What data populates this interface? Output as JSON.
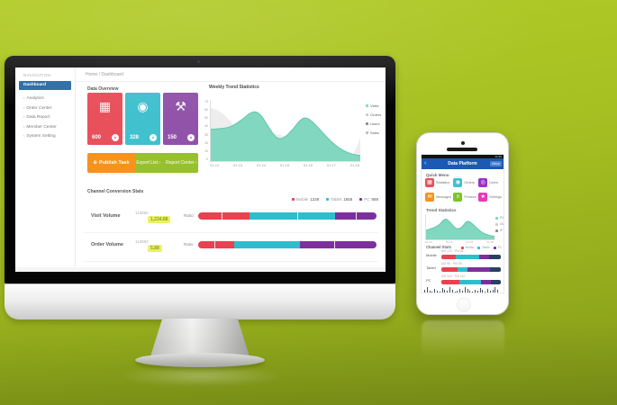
{
  "colors": {
    "bg_top": "#b2cc28",
    "bg_bottom": "#84991a",
    "accent_blue": "#2e6da4",
    "phone_header": "#1b59b4",
    "card_red": "#e8505b",
    "card_cyan": "#41c0ce",
    "card_purple": "#9153a9",
    "btn_orange": "#f6921e",
    "btn_green": "#96c02d",
    "teal_area": "#82d7c0",
    "teal_edge": "#5ec7ab",
    "gray_area": "#ededed",
    "bar_red": "#e8414f",
    "bar_cyan": "#2fbccc",
    "bar_purple": "#7d2f9e",
    "bar_navy": "#2b3f63",
    "badge_yellow": "#e9f264"
  },
  "desktop": {
    "sidebar": {
      "header": "NAVIGATION",
      "items": [
        {
          "label": "Dashboard",
          "active": true
        },
        {
          "label": "Analytics",
          "active": false
        },
        {
          "label": "Order Center",
          "active": false
        },
        {
          "label": "Data Report",
          "active": false
        },
        {
          "label": "Member Center",
          "active": false
        },
        {
          "label": "System Setting",
          "active": false
        }
      ]
    },
    "breadcrumb": "Home / Dashboard",
    "overview": {
      "title": "Data Overview",
      "cards": [
        {
          "value": "600",
          "icon": "calendar-icon",
          "color": "#e8505b"
        },
        {
          "value": "328",
          "icon": "disk-icon",
          "color": "#41c0ce"
        },
        {
          "value": "150",
          "icon": "hammer-icon",
          "color": "#9153a9"
        }
      ],
      "primary_action": "Publish Task",
      "secondary_actions": [
        "Export List ›",
        "Report Center ›"
      ]
    },
    "trend": {
      "title": "Weekly Trend Statistics"
    },
    "channels": {
      "title": "Channel Conversion Stats",
      "legend": [
        {
          "label": "Mobile",
          "value": "1238",
          "color": "#e8414f"
        },
        {
          "label": "Tablet",
          "value": "1858",
          "color": "#2fbccc"
        },
        {
          "label": "PC",
          "value": "888",
          "color": "#7d2f9e"
        }
      ],
      "rows": [
        {
          "name": "Visit Volume",
          "value": "113882",
          "badge": "1,234.88",
          "bar_label": "Ratio:"
        },
        {
          "name": "Order Volume",
          "value": "113883",
          "badge": "5.88",
          "bar_label": "Ratio:"
        }
      ]
    }
  },
  "phone": {
    "status_time": "12:30",
    "header": {
      "back": "‹",
      "title": "Data Platform",
      "action": "Menu"
    },
    "menu": {
      "title": "Quick Menu",
      "tiles": [
        {
          "label": "Statistics",
          "icon": "grid-icon",
          "color": "#e8505b"
        },
        {
          "label": "Orders",
          "icon": "disk-icon",
          "color": "#41c0ce"
        },
        {
          "label": "Users",
          "icon": "target-icon",
          "color": "#9b30c8"
        },
        {
          "label": "Messages",
          "icon": "mail-icon",
          "color": "#f6921e"
        },
        {
          "label": "Finance",
          "icon": "list-icon",
          "color": "#7dc32a"
        },
        {
          "label": "Settings",
          "icon": "star-icon",
          "color": "#e838b8"
        }
      ]
    },
    "trend": {
      "title": "Trend Statistics"
    },
    "channels": {
      "title": "Channel Stats",
      "legend": [
        {
          "label": "Mobile",
          "color": "#e8414f"
        },
        {
          "label": "Tablet",
          "color": "#2fbccc"
        },
        {
          "label": "PC",
          "color": "#7d2f9e"
        }
      ],
      "rows": [
        {
          "name": "Mobile",
          "meta": "AM 123 · PM 86"
        },
        {
          "name": "Tablet",
          "meta": "AM 96 · PM 58"
        },
        {
          "name": "PC",
          "meta": "AM 318 · PM 142"
        }
      ]
    }
  },
  "chart_data": [
    {
      "type": "area",
      "id": "desktop-trend",
      "title": "Weekly Trend Statistics",
      "x_labels": [
        "01-12",
        "01-13",
        "01-14",
        "01-15",
        "01-16",
        "01-17",
        "01-18"
      ],
      "y_ticks": [
        "70",
        "60",
        "50",
        "40",
        "30",
        "20",
        "10",
        "0"
      ],
      "legend": [
        {
          "label": "Visits",
          "color": "#82d7c0"
        },
        {
          "label": "Orders",
          "color": "#cccccc"
        },
        {
          "label": "Users",
          "color": "#888888"
        },
        {
          "label": "Sales",
          "color": "#bbbbbb"
        }
      ],
      "series": [
        {
          "name": "previous",
          "color": "#ededed",
          "points": [
            [
              0,
              0.87
            ],
            [
              0.06,
              0.83
            ],
            [
              0.13,
              0.66
            ],
            [
              0.2,
              0.46
            ],
            [
              0.27,
              0.36
            ],
            [
              0.34,
              0.38
            ],
            [
              0.42,
              0.46
            ],
            [
              0.5,
              0.4
            ],
            [
              0.58,
              0.42
            ],
            [
              0.66,
              0.46
            ],
            [
              0.74,
              0.38
            ],
            [
              0.82,
              0.24
            ],
            [
              0.9,
              0.1
            ],
            [
              0.95,
              0.08
            ],
            [
              1,
              0.38
            ]
          ]
        },
        {
          "name": "current",
          "color": "#82d7c0",
          "stroke": "#5ec7ab",
          "points": [
            [
              0,
              0.52
            ],
            [
              0.07,
              0.53
            ],
            [
              0.14,
              0.56
            ],
            [
              0.21,
              0.68
            ],
            [
              0.28,
              0.82
            ],
            [
              0.33,
              0.78
            ],
            [
              0.38,
              0.58
            ],
            [
              0.44,
              0.36
            ],
            [
              0.49,
              0.37
            ],
            [
              0.55,
              0.52
            ],
            [
              0.6,
              0.68
            ],
            [
              0.64,
              0.72
            ],
            [
              0.7,
              0.6
            ],
            [
              0.77,
              0.4
            ],
            [
              0.85,
              0.22
            ],
            [
              0.93,
              0.12
            ],
            [
              1,
              0.09
            ]
          ]
        }
      ]
    },
    {
      "type": "area",
      "id": "phone-trend",
      "x_labels": [
        "01-12",
        "01-14",
        "01-16",
        "01-18"
      ],
      "legend": [
        {
          "label": "PV",
          "color": "#82d7c0"
        },
        {
          "label": "UV",
          "color": "#cccccc"
        },
        {
          "label": "IP",
          "color": "#888888"
        }
      ],
      "series": [
        {
          "name": "current",
          "color": "#82d7c0",
          "stroke": "#5ec7ab",
          "points": [
            [
              0,
              0.36
            ],
            [
              0.1,
              0.44
            ],
            [
              0.2,
              0.58
            ],
            [
              0.28,
              0.86
            ],
            [
              0.36,
              0.66
            ],
            [
              0.44,
              0.4
            ],
            [
              0.52,
              0.46
            ],
            [
              0.6,
              0.76
            ],
            [
              0.68,
              0.62
            ],
            [
              0.78,
              0.34
            ],
            [
              0.88,
              0.18
            ],
            [
              1,
              0.12
            ]
          ]
        }
      ]
    },
    {
      "type": "stacked-bar",
      "id": "desktop-channels",
      "rows": [
        {
          "name": "Visit Volume",
          "segments": [
            {
              "color": "#e8414f",
              "pct": 29,
              "tick": 45
            },
            {
              "color": "#2fbccc",
              "pct": 48,
              "tick": 55
            },
            {
              "color": "#7d2f9e",
              "pct": 23,
              "tick": 50
            }
          ]
        },
        {
          "name": "Order Volume",
          "segments": [
            {
              "color": "#e8414f",
              "pct": 20,
              "tick": 45
            },
            {
              "color": "#2fbccc",
              "pct": 37
            },
            {
              "color": "#7d2f9e",
              "pct": 43,
              "tick": 45
            }
          ]
        }
      ]
    },
    {
      "type": "stacked-bar",
      "id": "phone-channels",
      "rows": [
        {
          "name": "Mobile",
          "segments": [
            {
              "color": "#e8414f",
              "pct": 24
            },
            {
              "color": "#2fbccc",
              "pct": 40
            },
            {
              "color": "#7d2f9e",
              "pct": 16
            },
            {
              "color": "#2b3f63",
              "pct": 20
            }
          ]
        },
        {
          "name": "Tablet",
          "segments": [
            {
              "color": "#e8414f",
              "pct": 28
            },
            {
              "color": "#2fbccc",
              "pct": 16
            },
            {
              "color": "#7d2f9e",
              "pct": 38
            },
            {
              "color": "#2b3f63",
              "pct": 18
            }
          ]
        },
        {
          "name": "PC",
          "segments": [
            {
              "color": "#e8414f",
              "pct": 30
            },
            {
              "color": "#2fbccc",
              "pct": 36
            },
            {
              "color": "#7d2f9e",
              "pct": 18
            },
            {
              "color": "#2b3f63",
              "pct": 16
            }
          ]
        }
      ]
    },
    {
      "type": "bar",
      "id": "phone-histogram",
      "values": [
        0.5,
        0.85,
        0.3,
        0.2,
        0.55,
        0.3,
        0.15,
        0.7,
        0.4,
        0.25,
        0.9,
        0.5,
        0.2,
        0.35,
        0.6,
        0.3,
        0.85,
        0.55,
        0.25,
        0.2,
        0.5,
        0.3,
        0.75,
        0.45,
        0.2,
        0.6,
        0.35,
        0.5,
        0.9,
        0.4
      ]
    }
  ]
}
